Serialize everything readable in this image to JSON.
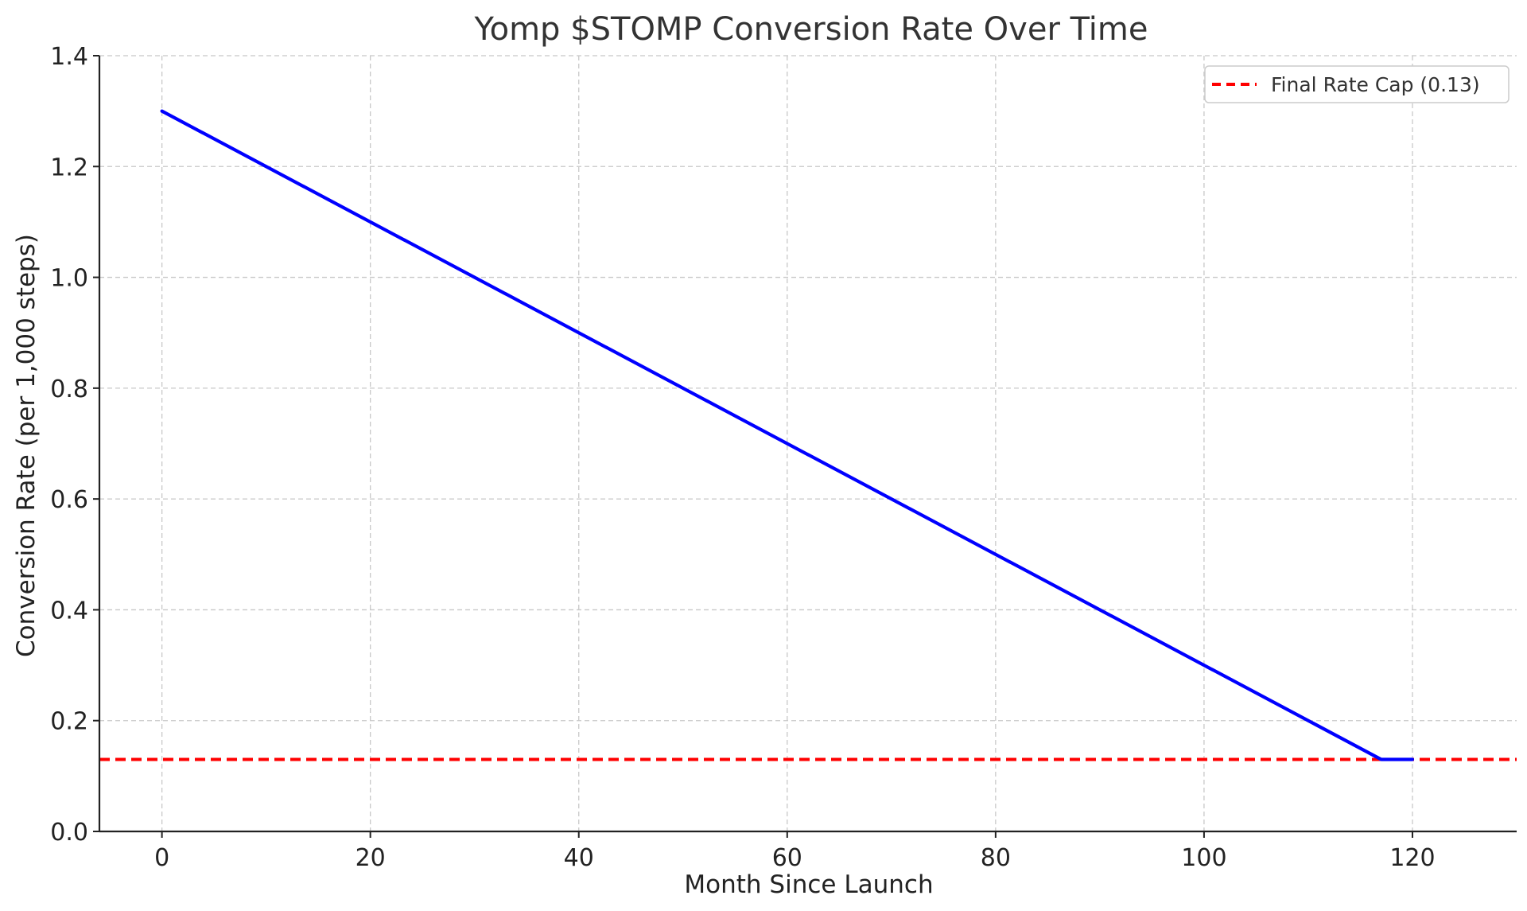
{
  "chart_data": {
    "type": "line",
    "title": "Yomp $STOMP Conversion Rate Over Time",
    "xlabel": "Month Since Launch",
    "ylabel": "Conversion Rate (per 1,000 steps)",
    "xlim": [
      -6,
      130
    ],
    "ylim": [
      0,
      1.4
    ],
    "xticks": [
      0,
      20,
      40,
      60,
      80,
      100,
      120
    ],
    "xtick_labels": [
      "0",
      "20",
      "40",
      "60",
      "80",
      "100",
      "120"
    ],
    "yticks": [
      0.0,
      0.2,
      0.4,
      0.6,
      0.8,
      1.0,
      1.2,
      1.4
    ],
    "ytick_labels": [
      "0.0",
      "0.2",
      "0.4",
      "0.6",
      "0.8",
      "1.0",
      "1.2",
      "1.4"
    ],
    "grid": true,
    "legend_position": "top-right",
    "series": [
      {
        "color": "#0000ff",
        "style": "solid",
        "x": [
          0,
          117,
          120
        ],
        "y": [
          1.3,
          0.13,
          0.13
        ]
      }
    ],
    "reference_lines": [
      {
        "name": "Final Rate Cap (0.13)",
        "orientation": "horizontal",
        "value": 0.13,
        "color": "#ff0000",
        "style": "dashed"
      }
    ]
  }
}
